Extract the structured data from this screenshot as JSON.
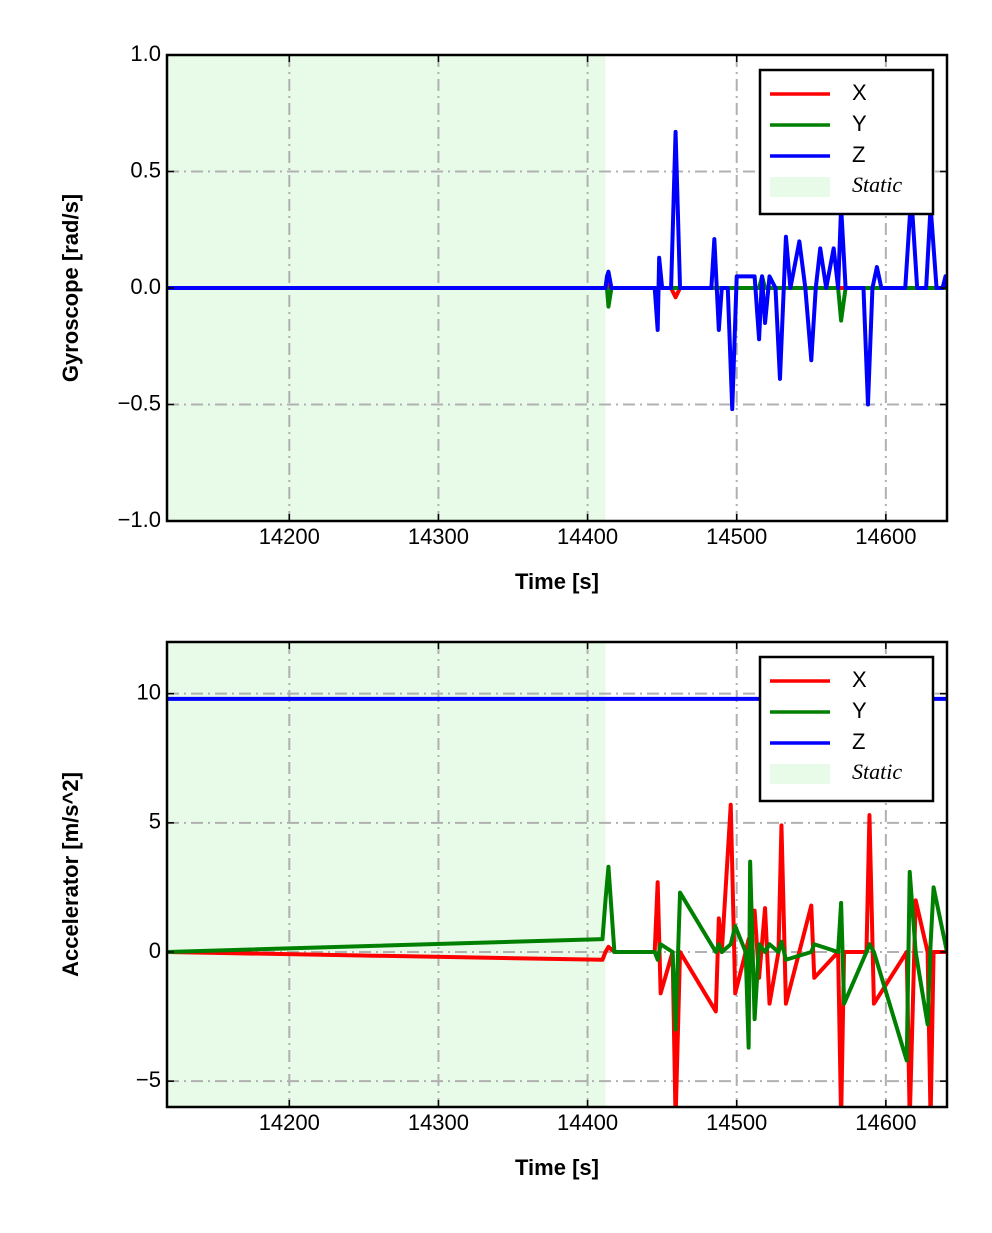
{
  "chart_data": [
    {
      "type": "line",
      "xlabel": "Time [s]",
      "ylabel": "Gyroscope [rad/s]",
      "xlim": [
        14118,
        14641
      ],
      "ylim": [
        -1,
        1
      ],
      "xticks": [
        14200,
        14300,
        14400,
        14500,
        14600
      ],
      "yticks": [
        {
          "value": -1,
          "label": "−1.0"
        },
        {
          "value": -0.5,
          "label": "−0.5"
        },
        {
          "value": 0,
          "label": "0.0"
        },
        0.5,
        {
          "value": 1,
          "label": "1.0"
        }
      ],
      "grid": true,
      "legend": "upper right",
      "shade": {
        "name": "Static",
        "xlim": [
          14118,
          14412
        ],
        "color": "#e8fbe8"
      },
      "x": [
        14118,
        14412,
        14413,
        14414,
        14416,
        14445,
        14447,
        14448,
        14450,
        14456,
        14459,
        14462,
        14483,
        14485,
        14488,
        14490,
        14494,
        14497,
        14500,
        14505,
        14512,
        14515,
        14517,
        14519,
        14522,
        14526,
        14529,
        14533,
        14536,
        14542,
        14546,
        14550,
        14553,
        14556,
        14560,
        14565,
        14568,
        14570,
        14573,
        14585,
        14588,
        14591,
        14594,
        14597,
        14613,
        14617,
        14621,
        14627,
        14630,
        14634,
        14638,
        14640,
        14641
      ],
      "series": [
        {
          "name": "X",
          "color": "#ff0000",
          "values": [
            0,
            0,
            0.04,
            -0.05,
            0,
            0,
            0,
            0,
            0,
            0,
            -0.04,
            0,
            0,
            0,
            0,
            0,
            0,
            0,
            0,
            0,
            0,
            0,
            0,
            0,
            0,
            0,
            0,
            0,
            0,
            0,
            0,
            0,
            0,
            0,
            0,
            0,
            0,
            0,
            0,
            0,
            0,
            0,
            0,
            0,
            0,
            0,
            0,
            0,
            0,
            0,
            0,
            0,
            0
          ]
        },
        {
          "name": "Y",
          "color": "#008000",
          "values": [
            0,
            0,
            0,
            -0.08,
            0,
            0,
            0,
            0,
            0,
            0,
            0,
            0,
            0,
            0,
            0,
            0,
            0,
            0,
            0,
            0,
            0,
            0,
            0.05,
            0,
            0,
            0,
            0,
            0,
            0,
            0,
            0,
            0,
            0,
            0,
            0,
            0,
            0,
            -0.14,
            0,
            0,
            0,
            0,
            0,
            0,
            0,
            0,
            0,
            0,
            0,
            0,
            0,
            0,
            0
          ]
        },
        {
          "name": "Z",
          "color": "#0000ff",
          "values": [
            0,
            0,
            0.05,
            0.07,
            0,
            0,
            -0.18,
            0.13,
            0,
            0,
            0.67,
            0,
            0,
            0.21,
            -0.18,
            0,
            0,
            -0.52,
            0.05,
            0.05,
            0.05,
            -0.22,
            0.05,
            -0.15,
            0.05,
            0,
            -0.39,
            0.22,
            0,
            0.2,
            0,
            -0.31,
            0,
            0.17,
            0,
            0.17,
            0,
            0.35,
            0,
            0,
            -0.5,
            0,
            0.09,
            0,
            0,
            0.4,
            0,
            0,
            0.35,
            0,
            0,
            0.05,
            0
          ]
        }
      ]
    },
    {
      "type": "line",
      "xlabel": "Time [s]",
      "ylabel": "Accelerator [m/s^2]",
      "xlim": [
        14118,
        14641
      ],
      "ylim": [
        -6,
        12
      ],
      "xticks": [
        14200,
        14300,
        14400,
        14500,
        14600
      ],
      "yticks": [
        {
          "value": -5,
          "label": "−5"
        },
        0,
        5,
        10
      ],
      "grid": true,
      "legend": "upper right",
      "shade": {
        "name": "Static",
        "xlim": [
          14118,
          14412
        ],
        "color": "#e8fbe8"
      },
      "x": [
        14118,
        14410,
        14412,
        14414,
        14418,
        14445,
        14447,
        14449,
        14457,
        14459,
        14462,
        14486,
        14488,
        14490,
        14496,
        14499,
        14506,
        14508,
        14509,
        14512,
        14515,
        14519,
        14522,
        14528,
        14530,
        14533,
        14550,
        14552,
        14568,
        14570,
        14572,
        14587,
        14589,
        14592,
        14614,
        14616,
        14620,
        14628,
        14630,
        14632,
        14641
      ],
      "series": [
        {
          "name": "X",
          "color": "#ff0000",
          "values": [
            0,
            -0.3,
            0,
            0.2,
            0,
            0,
            2.7,
            -1.6,
            0,
            -6.5,
            0,
            -2.3,
            1.3,
            0,
            5.7,
            -1.6,
            0,
            0.5,
            0,
            1.6,
            -1,
            1.7,
            -2,
            0,
            4.9,
            -2,
            1.8,
            -1,
            0,
            -6.5,
            0,
            0,
            5.3,
            -2,
            0,
            -6.5,
            2,
            0,
            -6.5,
            0,
            0
          ]
        },
        {
          "name": "Y",
          "color": "#008000",
          "values": [
            0,
            0.5,
            2,
            3.3,
            0,
            0,
            -0.3,
            0.3,
            0,
            -3,
            2.3,
            0,
            0.3,
            0,
            0.3,
            1,
            0,
            -3.7,
            3.5,
            -2.6,
            0.3,
            0,
            0.3,
            0,
            0.4,
            -0.3,
            0,
            0.3,
            0,
            1.9,
            -2,
            0,
            0.3,
            0,
            -4.2,
            3.1,
            0,
            -2.8,
            0.3,
            2.5,
            0
          ]
        },
        {
          "name": "Z",
          "color": "#0000ff",
          "values": [
            9.8,
            9.8,
            9.8,
            9.8,
            9.8,
            9.8,
            9.8,
            9.8,
            9.8,
            9.8,
            9.8,
            9.8,
            9.8,
            9.8,
            9.8,
            9.8,
            9.8,
            9.8,
            9.8,
            9.8,
            9.8,
            9.8,
            9.8,
            9.8,
            9.8,
            9.8,
            9.8,
            9.8,
            9.8,
            9.8,
            9.8,
            9.8,
            9.8,
            9.8,
            9.8,
            9.8,
            9.8,
            9.8,
            9.8,
            9.8,
            9.8
          ]
        }
      ]
    }
  ]
}
